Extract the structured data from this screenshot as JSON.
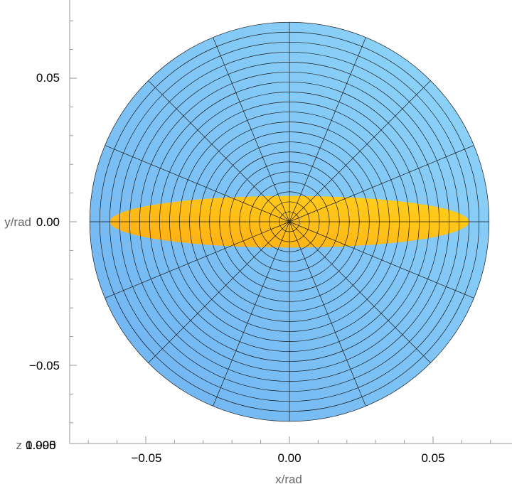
{
  "chart_data": {
    "type": "polar-surface",
    "xlabel": "x/rad",
    "ylabel": "y/rad",
    "zlabel": "z",
    "xlim": [
      -0.072,
      0.077
    ],
    "ylim": [
      -0.078,
      0.078
    ],
    "x_ticks": [
      {
        "value": -0.05,
        "label": "−0.05"
      },
      {
        "value": 0.0,
        "label": "0.00"
      },
      {
        "value": 0.05,
        "label": "0.05"
      }
    ],
    "y_ticks": [
      {
        "value": 0.05,
        "label": "0.05"
      },
      {
        "value": 0.0,
        "label": "0.00"
      },
      {
        "value": -0.05,
        "label": "−0.05"
      }
    ],
    "z_tick_labels": [
      "1.000",
      "0.995"
    ],
    "disk": {
      "center": [
        0.0,
        0.0
      ],
      "radius": 0.0695,
      "color_light": "#8fd6f8",
      "color_dark": "#6fb2f2"
    },
    "ellipse": {
      "center": [
        0.0,
        0.0
      ],
      "semi_x": 0.0625,
      "semi_y": 0.009,
      "color_light": "#ffd21c",
      "color_dark": "#ffac14"
    },
    "polar_grid": {
      "rings": 20,
      "spokes": 16
    }
  }
}
